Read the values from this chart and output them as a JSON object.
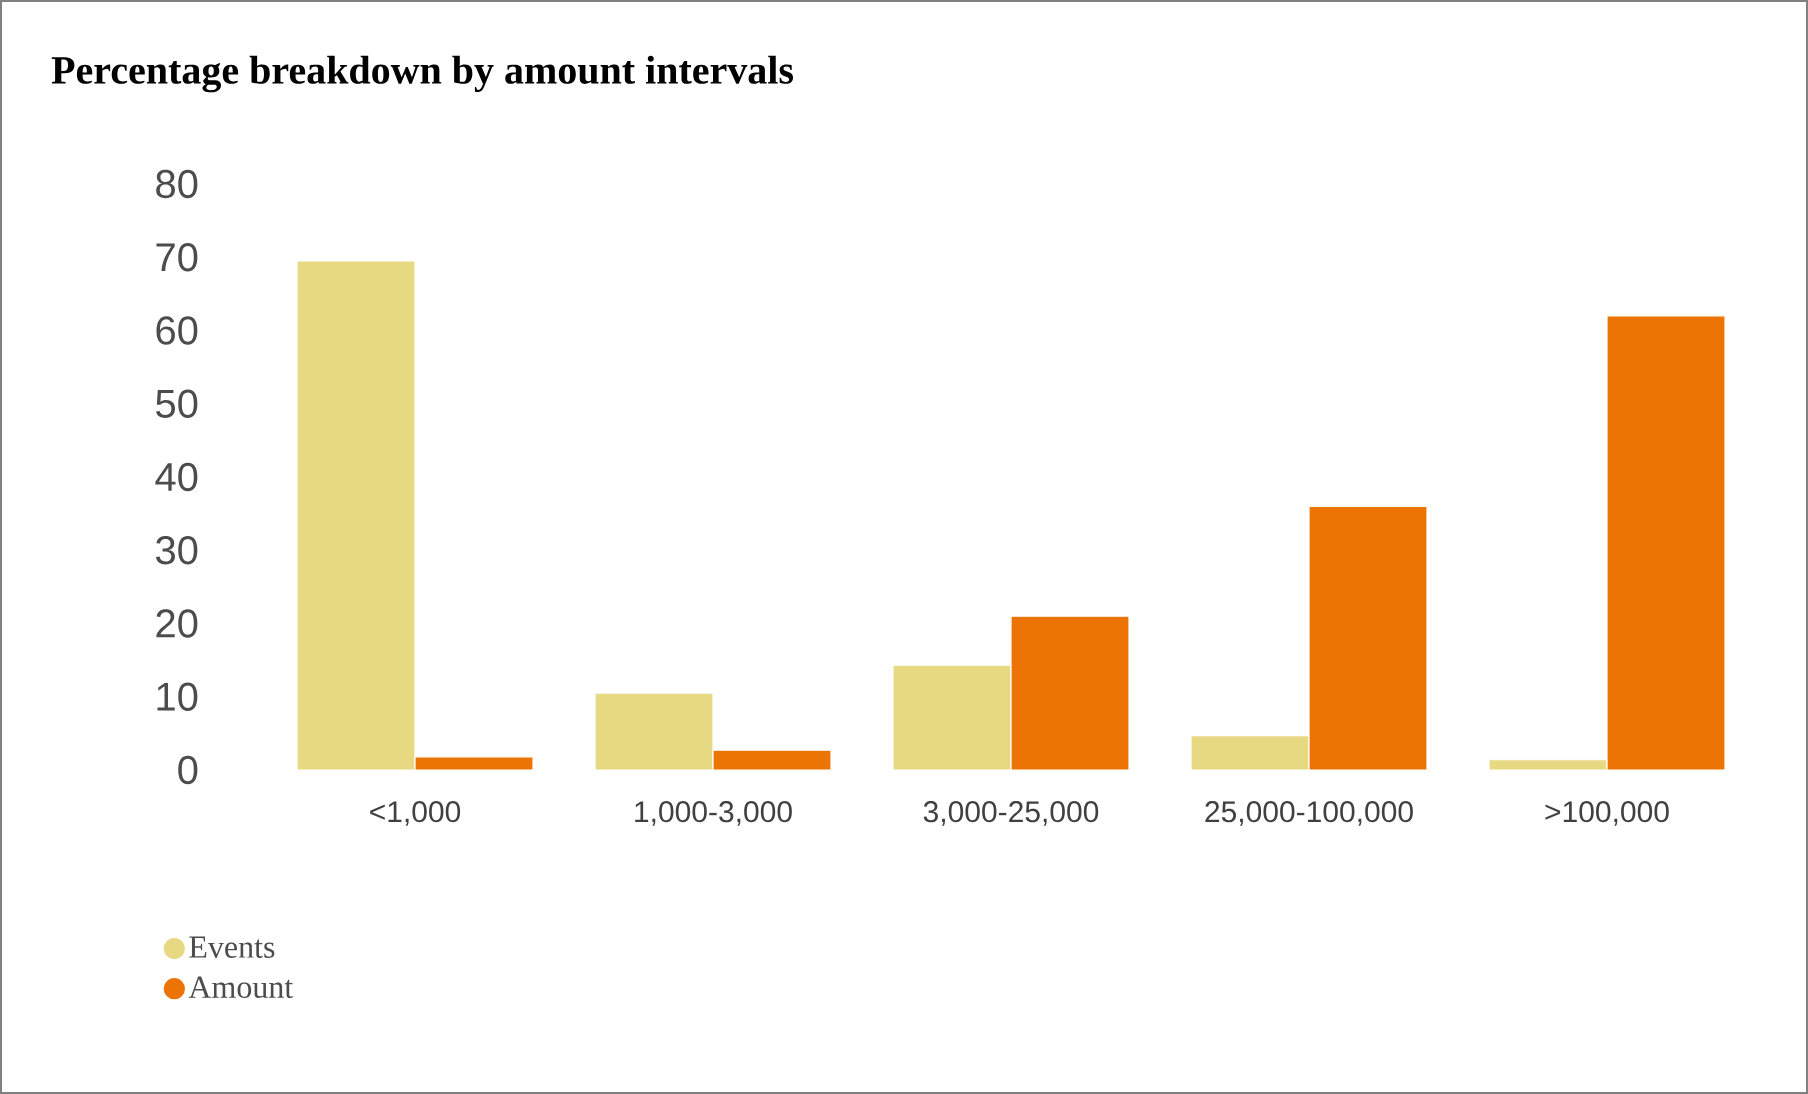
{
  "chart_data": {
    "type": "bar",
    "title": "Percentage breakdown by amount intervals",
    "categories": [
      "<1,000",
      "1,000-3,000",
      "3,000-25,000",
      "25,000-100,000",
      ">100,000"
    ],
    "series": [
      {
        "name": "Events",
        "color": "#e7d981",
        "values": [
          69.5,
          10.5,
          14.3,
          4.7,
          1.4
        ]
      },
      {
        "name": "Amount",
        "color": "#ec7404",
        "values": [
          1.8,
          2.7,
          21,
          36,
          62
        ]
      }
    ],
    "ylim": [
      0,
      80
    ],
    "yticks": [
      0,
      10,
      20,
      30,
      40,
      50,
      60,
      70,
      80
    ],
    "grid": false,
    "legend": "bottom left",
    "marker": "circle"
  }
}
